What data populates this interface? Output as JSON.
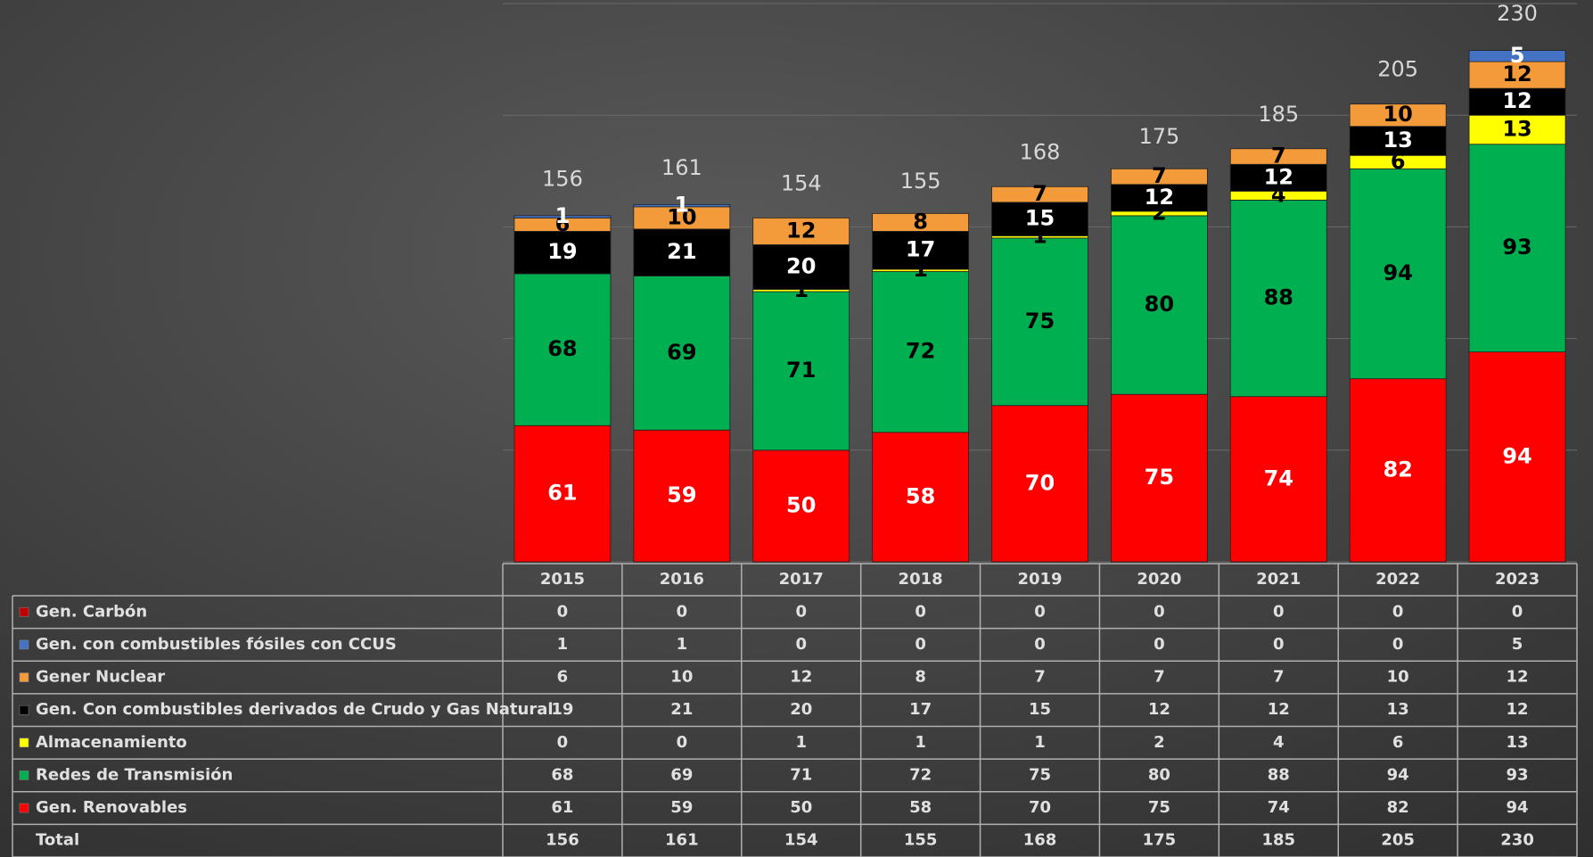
{
  "chart_data": {
    "type": "stacked_bar",
    "categories": [
      "2015",
      "2016",
      "2017",
      "2018",
      "2019",
      "2020",
      "2021",
      "2022",
      "2023"
    ],
    "series": [
      {
        "name": "Gen. Carbón",
        "color": "#c00000",
        "values": [
          0,
          0,
          0,
          0,
          0,
          0,
          0,
          0,
          0
        ]
      },
      {
        "name": "Gen. con combustibles fósiles con CCUS",
        "color": "#4472c4",
        "values": [
          1,
          1,
          0,
          0,
          0,
          0,
          0,
          0,
          5
        ]
      },
      {
        "name": "Gener Nuclear",
        "color": "#f39a3a",
        "values": [
          6,
          10,
          12,
          8,
          7,
          7,
          7,
          10,
          12
        ]
      },
      {
        "name": "Gen. Con combustibles derivados de Crudo y Gas Natural",
        "color": "#000000",
        "values": [
          19,
          21,
          20,
          17,
          15,
          12,
          12,
          13,
          12
        ]
      },
      {
        "name": "Almacenamiento",
        "color": "#ffff00",
        "values": [
          0,
          0,
          1,
          1,
          1,
          2,
          4,
          6,
          13
        ]
      },
      {
        "name": "Redes de Transmisión",
        "color": "#00b050",
        "values": [
          68,
          69,
          71,
          72,
          75,
          80,
          88,
          94,
          93
        ]
      },
      {
        "name": "Gen. Renovables",
        "color": "#ff0000",
        "values": [
          61,
          59,
          50,
          58,
          70,
          75,
          74,
          82,
          94
        ]
      }
    ],
    "total_label": "Total",
    "totals": [
      156,
      161,
      154,
      155,
      168,
      175,
      185,
      205,
      230
    ],
    "ylim": [
      0,
      250
    ],
    "yticks": [
      0,
      50,
      100,
      150,
      200,
      250
    ],
    "grid": true
  }
}
